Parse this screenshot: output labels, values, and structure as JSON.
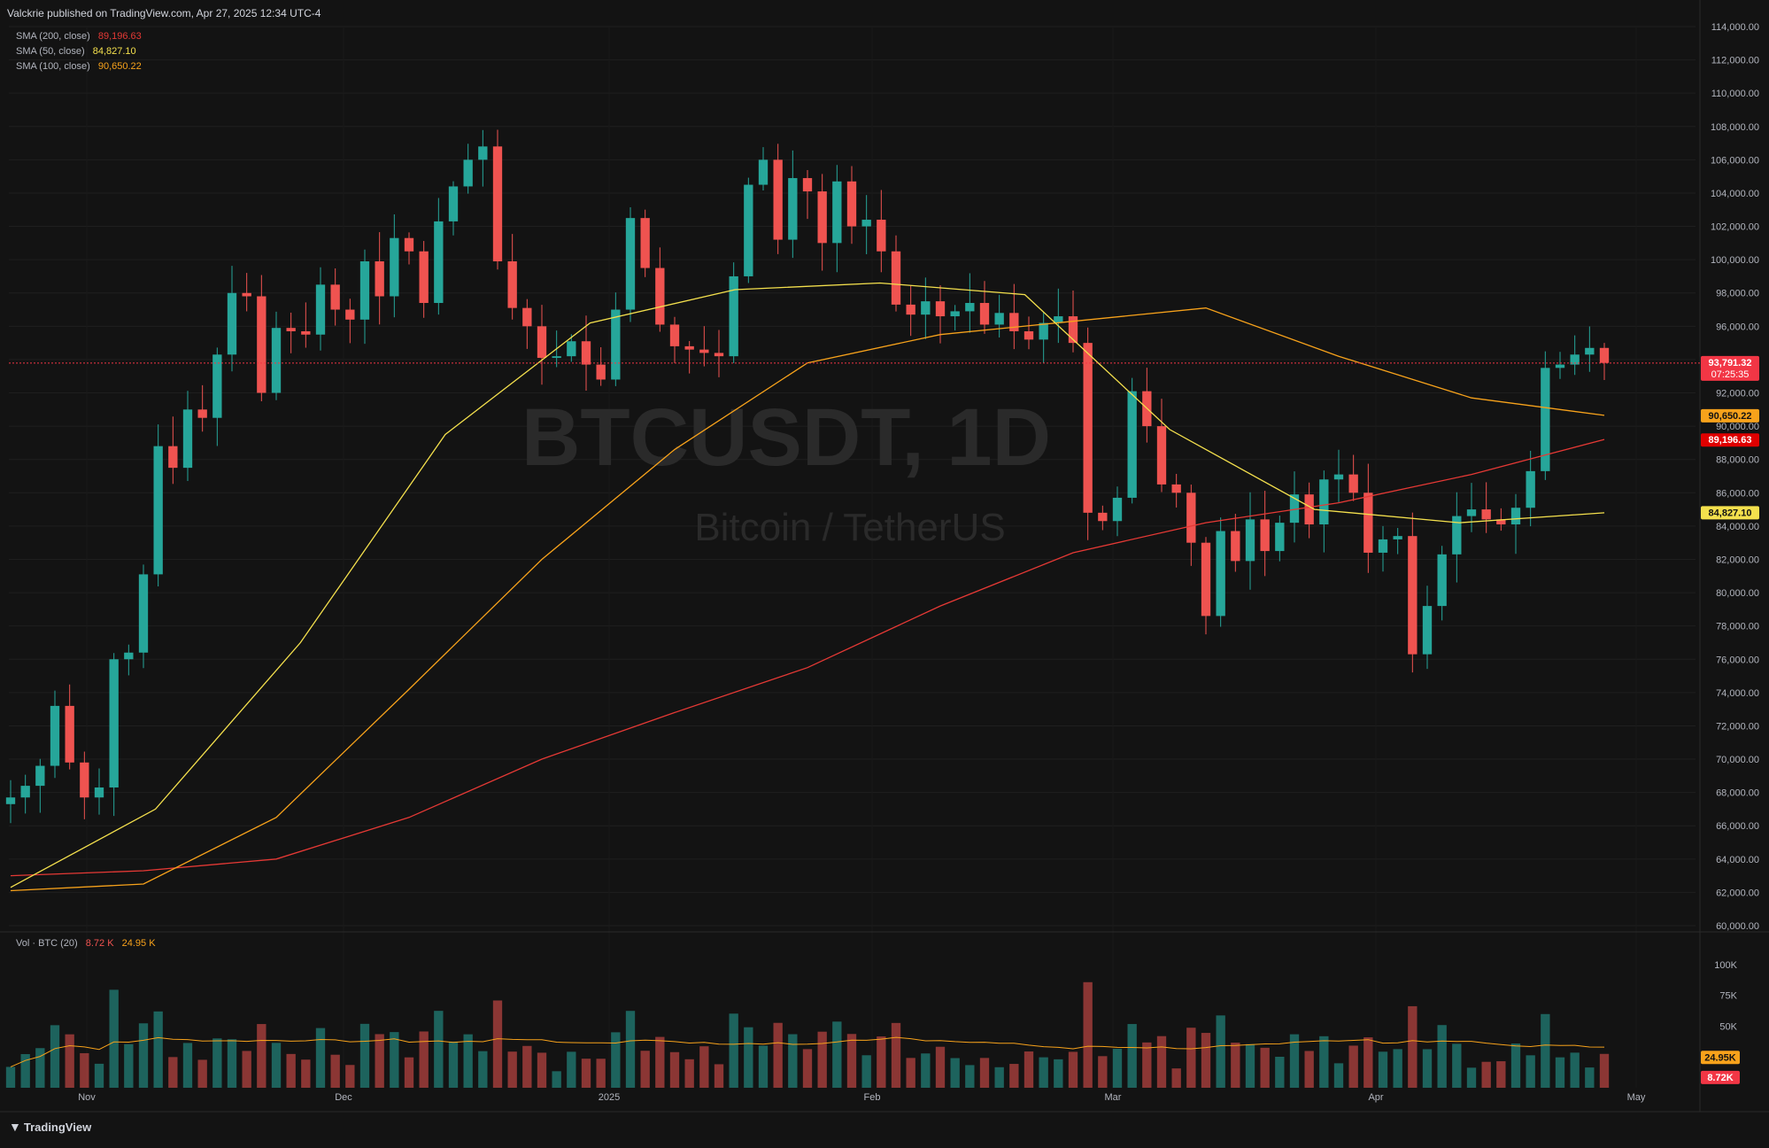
{
  "header": {
    "text": "Valckrie published on TradingView.com, Apr 27, 2025 12:34 UTC-4"
  },
  "legend": [
    {
      "label": "SMA (200, close)",
      "value": "89,196.63",
      "color": "#e53935"
    },
    {
      "label": "SMA (50, close)",
      "value": "84,827.10",
      "color": "#f4e04d"
    },
    {
      "label": "SMA (100, close)",
      "value": "90,650.22",
      "color": "#f7a21b"
    }
  ],
  "watermark": {
    "symbol": "BTCUSDT, 1D",
    "name": "Bitcoin / TetherUS"
  },
  "volume_legend": {
    "label": "Vol · BTC (20)",
    "value1": "8.72 K",
    "value2": "24.95 K"
  },
  "brand": "TradingView",
  "colors": {
    "up": "#26a69a",
    "down": "#ef5350",
    "background": "#131313",
    "grid": "#1f1f1f"
  },
  "chart_data": {
    "type": "candlestick",
    "price_axis": {
      "ticks": [
        "114,000.00",
        "112,000.00",
        "110,000.00",
        "108,000.00",
        "106,000.00",
        "104,000.00",
        "102,000.00",
        "100,000.00",
        "98,000.00",
        "96,000.00",
        "94,000.00",
        "92,000.00",
        "90,000.00",
        "88,000.00",
        "86,000.00",
        "84,000.00",
        "82,000.00",
        "80,000.00",
        "78,000.00",
        "76,000.00",
        "74,000.00",
        "72,000.00",
        "70,000.00",
        "68,000.00",
        "66,000.00",
        "64,000.00",
        "62,000.00",
        "60,000.00"
      ],
      "range": [
        60000,
        114000
      ]
    },
    "time_axis": {
      "labels": [
        "Nov",
        "Dec",
        "2025",
        "Feb",
        "Mar",
        "Apr",
        "May"
      ]
    },
    "volume_axis": {
      "ticks": [
        "100K",
        "75K",
        "50K"
      ],
      "range": [
        0,
        110000
      ]
    },
    "price_labels": [
      {
        "text": "93,791.32",
        "sub": "07:25:35",
        "value": 93791.32,
        "bg": "#f23645",
        "fg": "#ffffff"
      },
      {
        "text": "90,650.22",
        "value": 90650.22,
        "bg": "#f7a21b",
        "fg": "#131313"
      },
      {
        "text": "89,196.63",
        "value": 89196.63,
        "bg": "#e00000",
        "fg": "#ffffff"
      },
      {
        "text": "84,827.10",
        "value": 84827.1,
        "bg": "#f4e04d",
        "fg": "#131313"
      }
    ],
    "volume_labels": [
      {
        "text": "24.95K",
        "value": 24950,
        "bg": "#f7a21b",
        "fg": "#131313"
      },
      {
        "text": "8.72K",
        "value": 8720,
        "bg": "#f23645",
        "fg": "#ffffff"
      }
    ],
    "sma200_anchor_values": [
      63000,
      63300,
      64000,
      66500,
      70000,
      72800,
      75500,
      79200,
      82400,
      84200,
      85400,
      87100,
      89200
    ],
    "sma100_anchor_values": [
      62100,
      62500,
      66500,
      74200,
      82000,
      88600,
      93800,
      95500,
      96300,
      97100,
      94200,
      91700,
      90650
    ],
    "sma50_anchor_values": [
      62300,
      67000,
      77000,
      89500,
      96200,
      98200,
      98600,
      97900,
      89800,
      85000,
      84200,
      84800
    ],
    "series": [
      {
        "name": "BTCUSDT",
        "close_path": [
          67700,
          68400,
          69600,
          73200,
          69800,
          67700,
          68300,
          76000,
          76400,
          81100,
          88800,
          87500,
          91000,
          90500,
          94300,
          98000,
          97800,
          92000,
          95900,
          95700,
          95500,
          98500,
          97000,
          96400,
          99900,
          97800,
          101300,
          100500,
          97400,
          102300,
          104400,
          106000,
          106800,
          99900,
          97100,
          96000,
          94100,
          94200,
          95100,
          93700,
          92800,
          97000,
          102500,
          99500,
          96100,
          94800,
          94600,
          94400,
          94200,
          99000,
          104500,
          106000,
          101200,
          104900,
          104100,
          101000,
          104700,
          102000,
          102400,
          100500,
          97300,
          96700,
          97500,
          96600,
          96900,
          97400,
          96100,
          96800,
          95700,
          95200,
          96200,
          96600,
          95000,
          84800,
          84300,
          85700,
          92100,
          90000,
          86500,
          86000,
          83000,
          78600,
          83700,
          81900,
          84400,
          82500,
          84200,
          85900,
          84100,
          86800,
          87100,
          86000,
          82400,
          83200,
          83400,
          76300,
          79200,
          82300,
          84600,
          85000,
          84400,
          84100,
          85100,
          87300,
          93500,
          93700,
          94300,
          94700,
          93800
        ]
      }
    ]
  }
}
